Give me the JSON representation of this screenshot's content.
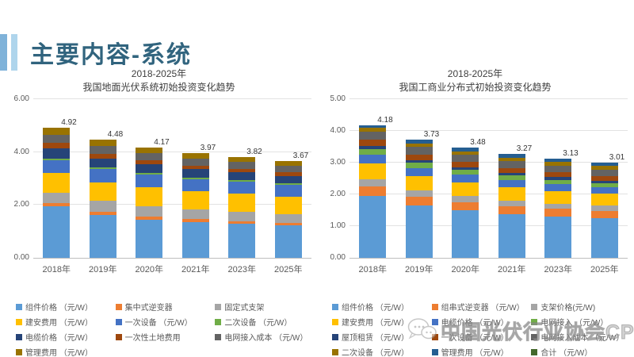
{
  "slide": {
    "title": "主要内容-系统",
    "title_color": "#31647E",
    "accent_bar_colors": [
      "#7FB2D9",
      "#AFD5EC"
    ]
  },
  "watermark": {
    "text": "中国光伏行业协会CPIA",
    "icon": "wechat-bubble-icon"
  },
  "chart_data": [
    {
      "type": "bar",
      "stacked": true,
      "title_line1": "2018-2025年",
      "title_line2": "我国地面光伏系统初始投资变化趋势",
      "categories": [
        "2018年",
        "2019年",
        "2020年",
        "2021年",
        "2023年",
        "2025年"
      ],
      "totals_label": [
        "4.92",
        "4.48",
        "4.17",
        "3.97",
        "3.82",
        "3.67"
      ],
      "ylim": [
        0,
        6.0
      ],
      "yticks": [
        "0.00",
        "2.00",
        "4.00",
        "6.00"
      ],
      "grid": true,
      "legend_position": "bottom",
      "unit": "元/W",
      "series": [
        {
          "name": "组件价格 （元/W）",
          "color": "#5B9BD5",
          "values": [
            1.95,
            1.62,
            1.45,
            1.35,
            1.28,
            1.22
          ]
        },
        {
          "name": "集中式逆变器",
          "color": "#ED7D31",
          "values": [
            0.12,
            0.13,
            0.12,
            0.11,
            0.11,
            0.1
          ]
        },
        {
          "name": "固定式支架",
          "color": "#A5A5A5",
          "values": [
            0.38,
            0.4,
            0.38,
            0.36,
            0.35,
            0.34
          ]
        },
        {
          "name": "建安费用 （元/W）",
          "color": "#FFC000",
          "values": [
            0.75,
            0.7,
            0.72,
            0.7,
            0.68,
            0.66
          ]
        },
        {
          "name": "一次设备 （元/W）",
          "color": "#4472C4",
          "values": [
            0.5,
            0.5,
            0.48,
            0.46,
            0.45,
            0.43
          ]
        },
        {
          "name": "二次设备 （元/W）",
          "color": "#70AD47",
          "values": [
            0.06,
            0.06,
            0.06,
            0.06,
            0.06,
            0.06
          ]
        },
        {
          "name": "电缆价格 （元/W）",
          "color": "#264478",
          "values": [
            0.38,
            0.35,
            0.33,
            0.31,
            0.3,
            0.29
          ]
        },
        {
          "name": "一次性土地费用",
          "color": "#9E480E",
          "values": [
            0.2,
            0.17,
            0.15,
            0.14,
            0.14,
            0.13
          ]
        },
        {
          "name": "电网接入成本 （元/W）",
          "color": "#636363",
          "values": [
            0.3,
            0.29,
            0.26,
            0.26,
            0.25,
            0.25
          ]
        },
        {
          "name": "管理费用 （元/W）",
          "color": "#997300",
          "values": [
            0.28,
            0.26,
            0.22,
            0.22,
            0.2,
            0.19
          ]
        }
      ],
      "legend_extra": []
    },
    {
      "type": "bar",
      "stacked": true,
      "title_line1": "2018-2025年",
      "title_line2": "我国工商业分布式初始投资变化趋势",
      "categories": [
        "2018年",
        "2019年",
        "2020年",
        "2021年",
        "2023年",
        "2025年"
      ],
      "totals_label": [
        "4.18",
        "3.73",
        "3.48",
        "3.27",
        "3.13",
        "3.01"
      ],
      "ylim": [
        0,
        5.0
      ],
      "yticks": [
        "0.00",
        "1.00",
        "2.00",
        "3.00",
        "4.00",
        "5.00"
      ],
      "grid": true,
      "legend_position": "bottom",
      "unit": "元/W",
      "series": [
        {
          "name": "组件价格 （元/W）",
          "color": "#5B9BD5",
          "values": [
            1.95,
            1.65,
            1.5,
            1.38,
            1.3,
            1.25
          ]
        },
        {
          "name": "组串式逆变器 （元/W）",
          "color": "#ED7D31",
          "values": [
            0.3,
            0.28,
            0.26,
            0.25,
            0.24,
            0.23
          ]
        },
        {
          "name": "支架价格(元/W)",
          "color": "#A5A5A5",
          "values": [
            0.22,
            0.2,
            0.19,
            0.18,
            0.17,
            0.16
          ]
        },
        {
          "name": "建安费用 （元/W）",
          "color": "#FFC000",
          "values": [
            0.5,
            0.45,
            0.43,
            0.41,
            0.4,
            0.38
          ]
        },
        {
          "name": "电缆价格 （元/W）",
          "color": "#4472C4",
          "values": [
            0.28,
            0.25,
            0.24,
            0.23,
            0.22,
            0.21
          ]
        },
        {
          "name": "电网接入 （元/W）",
          "color": "#70AD47",
          "values": [
            0.18,
            0.16,
            0.15,
            0.14,
            0.13,
            0.12
          ]
        },
        {
          "name": "屋顶租赁 （元/W）",
          "color": "#264478",
          "values": [
            0.1,
            0.09,
            0.08,
            0.08,
            0.08,
            0.07
          ]
        },
        {
          "name": "一次设备 （元/W）",
          "color": "#9E480E",
          "values": [
            0.2,
            0.18,
            0.17,
            0.16,
            0.15,
            0.15
          ]
        },
        {
          "name": "电网接入成本 （元/W）",
          "color": "#636363",
          "values": [
            0.25,
            0.23,
            0.22,
            0.21,
            0.21,
            0.2
          ]
        },
        {
          "name": "二次设备 （元/W）",
          "color": "#997300",
          "values": [
            0.12,
            0.12,
            0.12,
            0.12,
            0.12,
            0.12
          ]
        },
        {
          "name": "管理费用 （元/W）",
          "color": "#255E91",
          "values": [
            0.08,
            0.12,
            0.12,
            0.11,
            0.11,
            0.12
          ]
        }
      ],
      "legend_extra": [
        {
          "name": "合计 （元/W）",
          "color": "#43682B"
        }
      ]
    }
  ]
}
